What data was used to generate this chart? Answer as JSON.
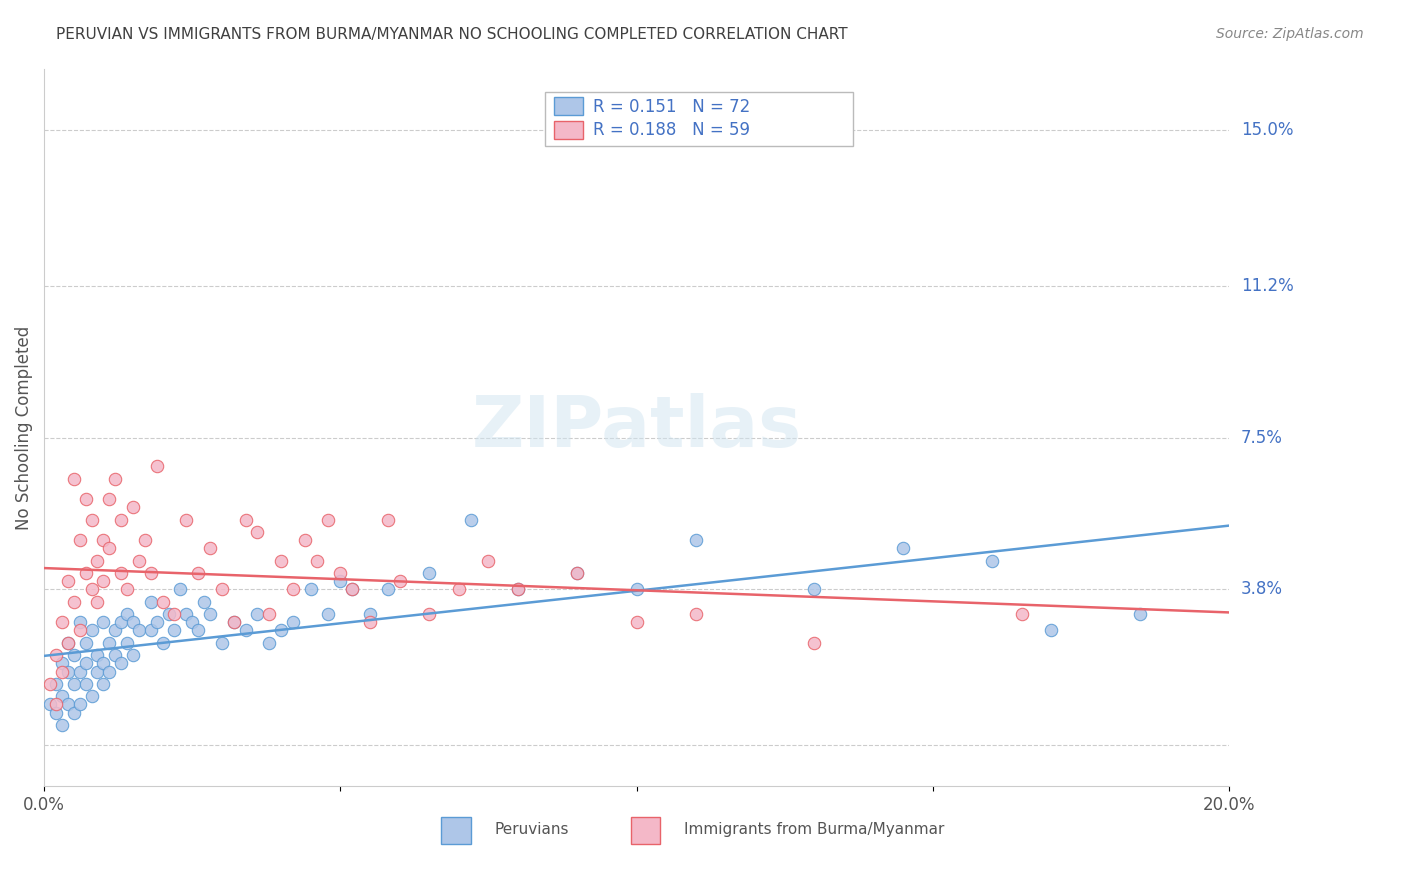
{
  "title": "PERUVIAN VS IMMIGRANTS FROM BURMA/MYANMAR NO SCHOOLING COMPLETED CORRELATION CHART",
  "source": "Source: ZipAtlas.com",
  "xlabel": "",
  "ylabel": "No Schooling Completed",
  "xlim": [
    0.0,
    0.2
  ],
  "ylim": [
    -0.01,
    0.16
  ],
  "ytick_positions": [
    0.0,
    0.038,
    0.075,
    0.112,
    0.15
  ],
  "ytick_labels": [
    "",
    "3.8%",
    "7.5%",
    "11.2%",
    "15.0%"
  ],
  "xtick_positions": [
    0.0,
    0.05,
    0.1,
    0.15,
    0.2
  ],
  "xtick_labels": [
    "0.0%",
    "",
    "",
    "",
    "20.0%"
  ],
  "peruvian_R": 0.151,
  "peruvian_N": 72,
  "burma_R": 0.188,
  "burma_N": 59,
  "peruvian_color": "#aec6e8",
  "burma_color": "#f4b8c8",
  "peruvian_line_color": "#5b9bd5",
  "burma_line_color": "#e8636a",
  "right_label_color": "#4472c4",
  "title_color": "#404040",
  "watermark": "ZIPatlas",
  "background_color": "#ffffff",
  "peruvian_x": [
    0.001,
    0.002,
    0.002,
    0.003,
    0.003,
    0.003,
    0.004,
    0.004,
    0.004,
    0.005,
    0.005,
    0.005,
    0.006,
    0.006,
    0.006,
    0.007,
    0.007,
    0.007,
    0.008,
    0.008,
    0.009,
    0.009,
    0.01,
    0.01,
    0.01,
    0.011,
    0.011,
    0.012,
    0.012,
    0.013,
    0.013,
    0.014,
    0.014,
    0.015,
    0.015,
    0.016,
    0.018,
    0.018,
    0.019,
    0.02,
    0.021,
    0.022,
    0.023,
    0.024,
    0.025,
    0.026,
    0.027,
    0.028,
    0.03,
    0.032,
    0.034,
    0.036,
    0.038,
    0.04,
    0.042,
    0.045,
    0.048,
    0.05,
    0.052,
    0.055,
    0.058,
    0.065,
    0.072,
    0.08,
    0.09,
    0.1,
    0.11,
    0.13,
    0.145,
    0.16,
    0.17,
    0.185
  ],
  "peruvian_y": [
    0.01,
    0.015,
    0.008,
    0.02,
    0.012,
    0.005,
    0.018,
    0.01,
    0.025,
    0.015,
    0.022,
    0.008,
    0.03,
    0.018,
    0.01,
    0.025,
    0.015,
    0.02,
    0.028,
    0.012,
    0.022,
    0.018,
    0.03,
    0.02,
    0.015,
    0.025,
    0.018,
    0.028,
    0.022,
    0.03,
    0.02,
    0.032,
    0.025,
    0.03,
    0.022,
    0.028,
    0.035,
    0.028,
    0.03,
    0.025,
    0.032,
    0.028,
    0.038,
    0.032,
    0.03,
    0.028,
    0.035,
    0.032,
    0.025,
    0.03,
    0.028,
    0.032,
    0.025,
    0.028,
    0.03,
    0.038,
    0.032,
    0.04,
    0.038,
    0.032,
    0.038,
    0.042,
    0.055,
    0.038,
    0.042,
    0.038,
    0.05,
    0.038,
    0.048,
    0.045,
    0.028,
    0.032
  ],
  "burma_x": [
    0.001,
    0.002,
    0.002,
    0.003,
    0.003,
    0.004,
    0.004,
    0.005,
    0.005,
    0.006,
    0.006,
    0.007,
    0.007,
    0.008,
    0.008,
    0.009,
    0.009,
    0.01,
    0.01,
    0.011,
    0.011,
    0.012,
    0.013,
    0.013,
    0.014,
    0.015,
    0.016,
    0.017,
    0.018,
    0.019,
    0.02,
    0.022,
    0.024,
    0.026,
    0.028,
    0.03,
    0.032,
    0.034,
    0.036,
    0.038,
    0.04,
    0.042,
    0.044,
    0.046,
    0.048,
    0.05,
    0.052,
    0.055,
    0.058,
    0.06,
    0.065,
    0.07,
    0.075,
    0.08,
    0.09,
    0.1,
    0.11,
    0.13,
    0.165
  ],
  "burma_y": [
    0.015,
    0.022,
    0.01,
    0.03,
    0.018,
    0.025,
    0.04,
    0.035,
    0.065,
    0.028,
    0.05,
    0.042,
    0.06,
    0.038,
    0.055,
    0.035,
    0.045,
    0.05,
    0.04,
    0.06,
    0.048,
    0.065,
    0.042,
    0.055,
    0.038,
    0.058,
    0.045,
    0.05,
    0.042,
    0.068,
    0.035,
    0.032,
    0.055,
    0.042,
    0.048,
    0.038,
    0.03,
    0.055,
    0.052,
    0.032,
    0.045,
    0.038,
    0.05,
    0.045,
    0.055,
    0.042,
    0.038,
    0.03,
    0.055,
    0.04,
    0.032,
    0.038,
    0.045,
    0.038,
    0.042,
    0.03,
    0.032,
    0.025,
    0.032
  ]
}
